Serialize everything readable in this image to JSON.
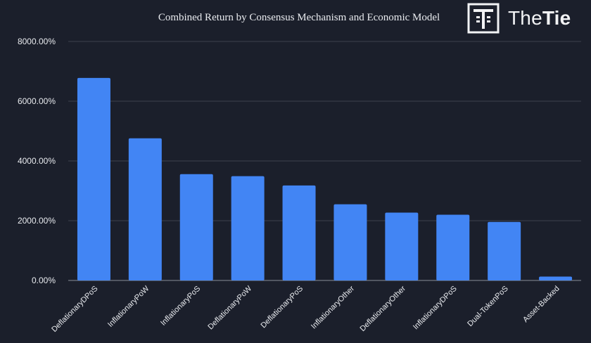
{
  "brand": {
    "name_light": "The",
    "name_bold": "Tie",
    "logo_icon": "the-tie-logo-icon"
  },
  "colors": {
    "background": "#1b1f2b",
    "bar": "#4285f4",
    "grid": "#3c414e",
    "text": "#e9ebef"
  },
  "chart_data": {
    "type": "bar",
    "title": "Combined Return by Consensus Mechanism and Economic Model",
    "xlabel": "",
    "ylabel": "",
    "categories": [
      "DeflationaryDPoS",
      "InflationaryPoW",
      "InflationaryPoS",
      "DeflationaryPoW",
      "DeflationaryPoS",
      "InflationaryOther",
      "DeflationaryOther",
      "InflationaryDPoS",
      "Dual-TokenPoS",
      "Asset-Backed"
    ],
    "values": [
      6780,
      4760,
      3560,
      3490,
      3180,
      2550,
      2270,
      2200,
      1960,
      130
    ],
    "ylim": [
      0,
      8000
    ],
    "yticks": [
      0,
      2000,
      4000,
      6000,
      8000
    ],
    "ytick_labels": [
      "0.00%",
      "2000.00%",
      "4000.00%",
      "6000.00%",
      "8000.00%"
    ],
    "value_format": "percent",
    "grid": true,
    "legend": "none"
  }
}
